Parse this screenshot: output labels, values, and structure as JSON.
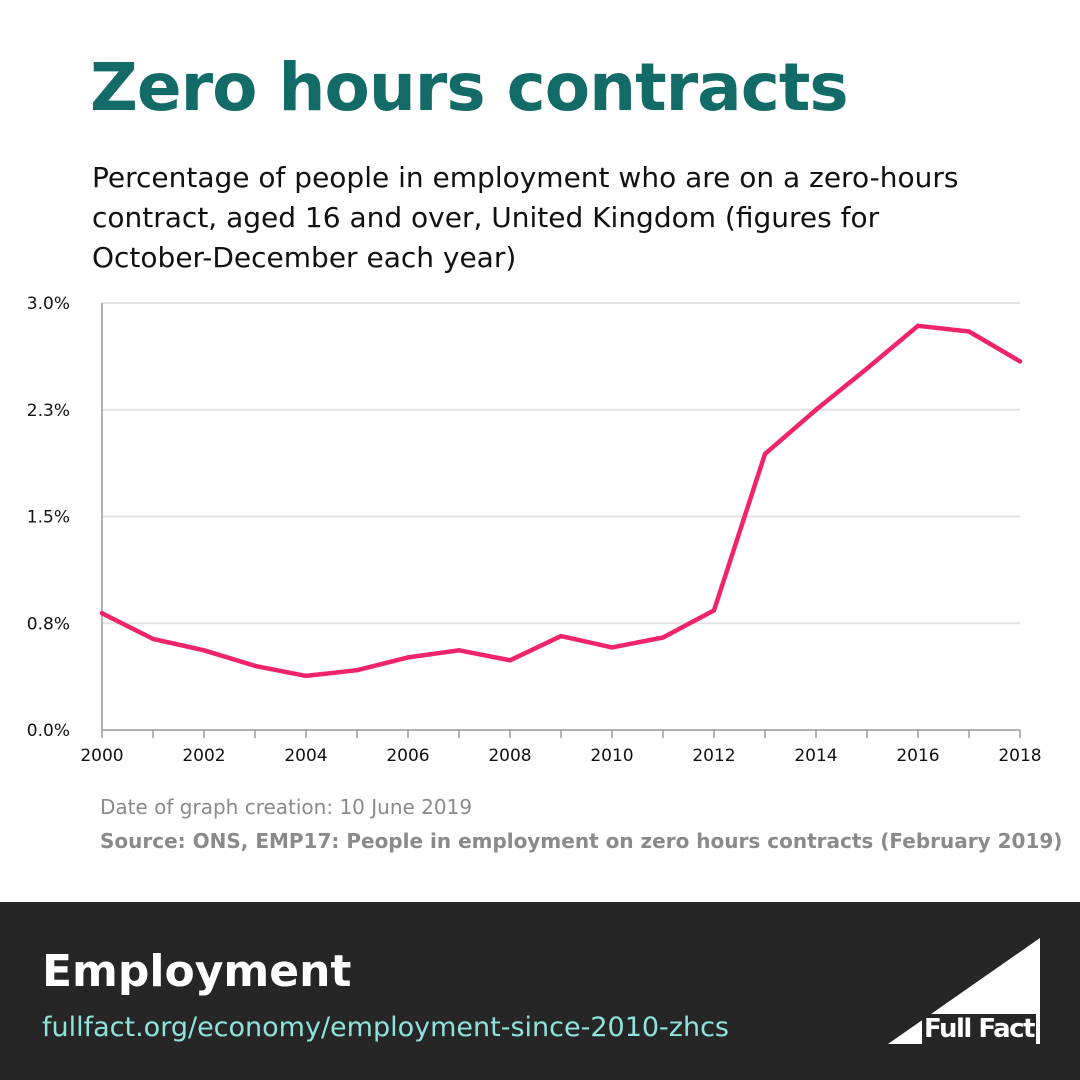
{
  "header": {
    "title": "Zero hours contracts",
    "subtitle": "Percentage of people in employment who are on a zero-hours contract, aged 16 and over, United Kingdom (figures for October-December each year)"
  },
  "chart_data": {
    "type": "line",
    "title": "",
    "xlabel": "",
    "ylabel": "",
    "x": [
      2000,
      2001,
      2002,
      2003,
      2004,
      2005,
      2006,
      2007,
      2008,
      2009,
      2010,
      2011,
      2012,
      2013,
      2014,
      2015,
      2016,
      2017,
      2018
    ],
    "x_tick_labels": [
      "2000",
      "2002",
      "2004",
      "2006",
      "2008",
      "2010",
      "2012",
      "2014",
      "2016",
      "2018"
    ],
    "x_tick_values": [
      2000,
      2002,
      2004,
      2006,
      2008,
      2010,
      2012,
      2014,
      2016,
      2018
    ],
    "y_tick_labels": [
      "0.0%",
      "0.8%",
      "1.5%",
      "2.3%",
      "3.0%"
    ],
    "y_tick_values": [
      0,
      0.75,
      1.5,
      2.25,
      3.0
    ],
    "ylim": [
      0,
      3.0
    ],
    "xlim": [
      2000,
      2018
    ],
    "grid": "horizontal",
    "series": [
      {
        "values": [
          0.82,
          0.64,
          0.56,
          0.45,
          0.38,
          0.42,
          0.51,
          0.56,
          0.49,
          0.66,
          0.58,
          0.65,
          0.84,
          1.94,
          2.25,
          2.54,
          2.84,
          2.8,
          2.59
        ],
        "color": "#f0236b"
      }
    ]
  },
  "footnotes": {
    "date": "Date of graph creation: 10 June 2019",
    "source": "Source: ONS, EMP17: People in employment on zero hours contracts (February 2019)"
  },
  "footer": {
    "topic": "Employment",
    "link": "fullfact.org/economy/employment-since-2010-zhcs",
    "logo_text": "Full Fact",
    "background": "#262626",
    "link_color": "#8fe3dc"
  },
  "colors": {
    "title": "#136b68",
    "line": "#f0236b",
    "grid": "#e3e3e3"
  }
}
